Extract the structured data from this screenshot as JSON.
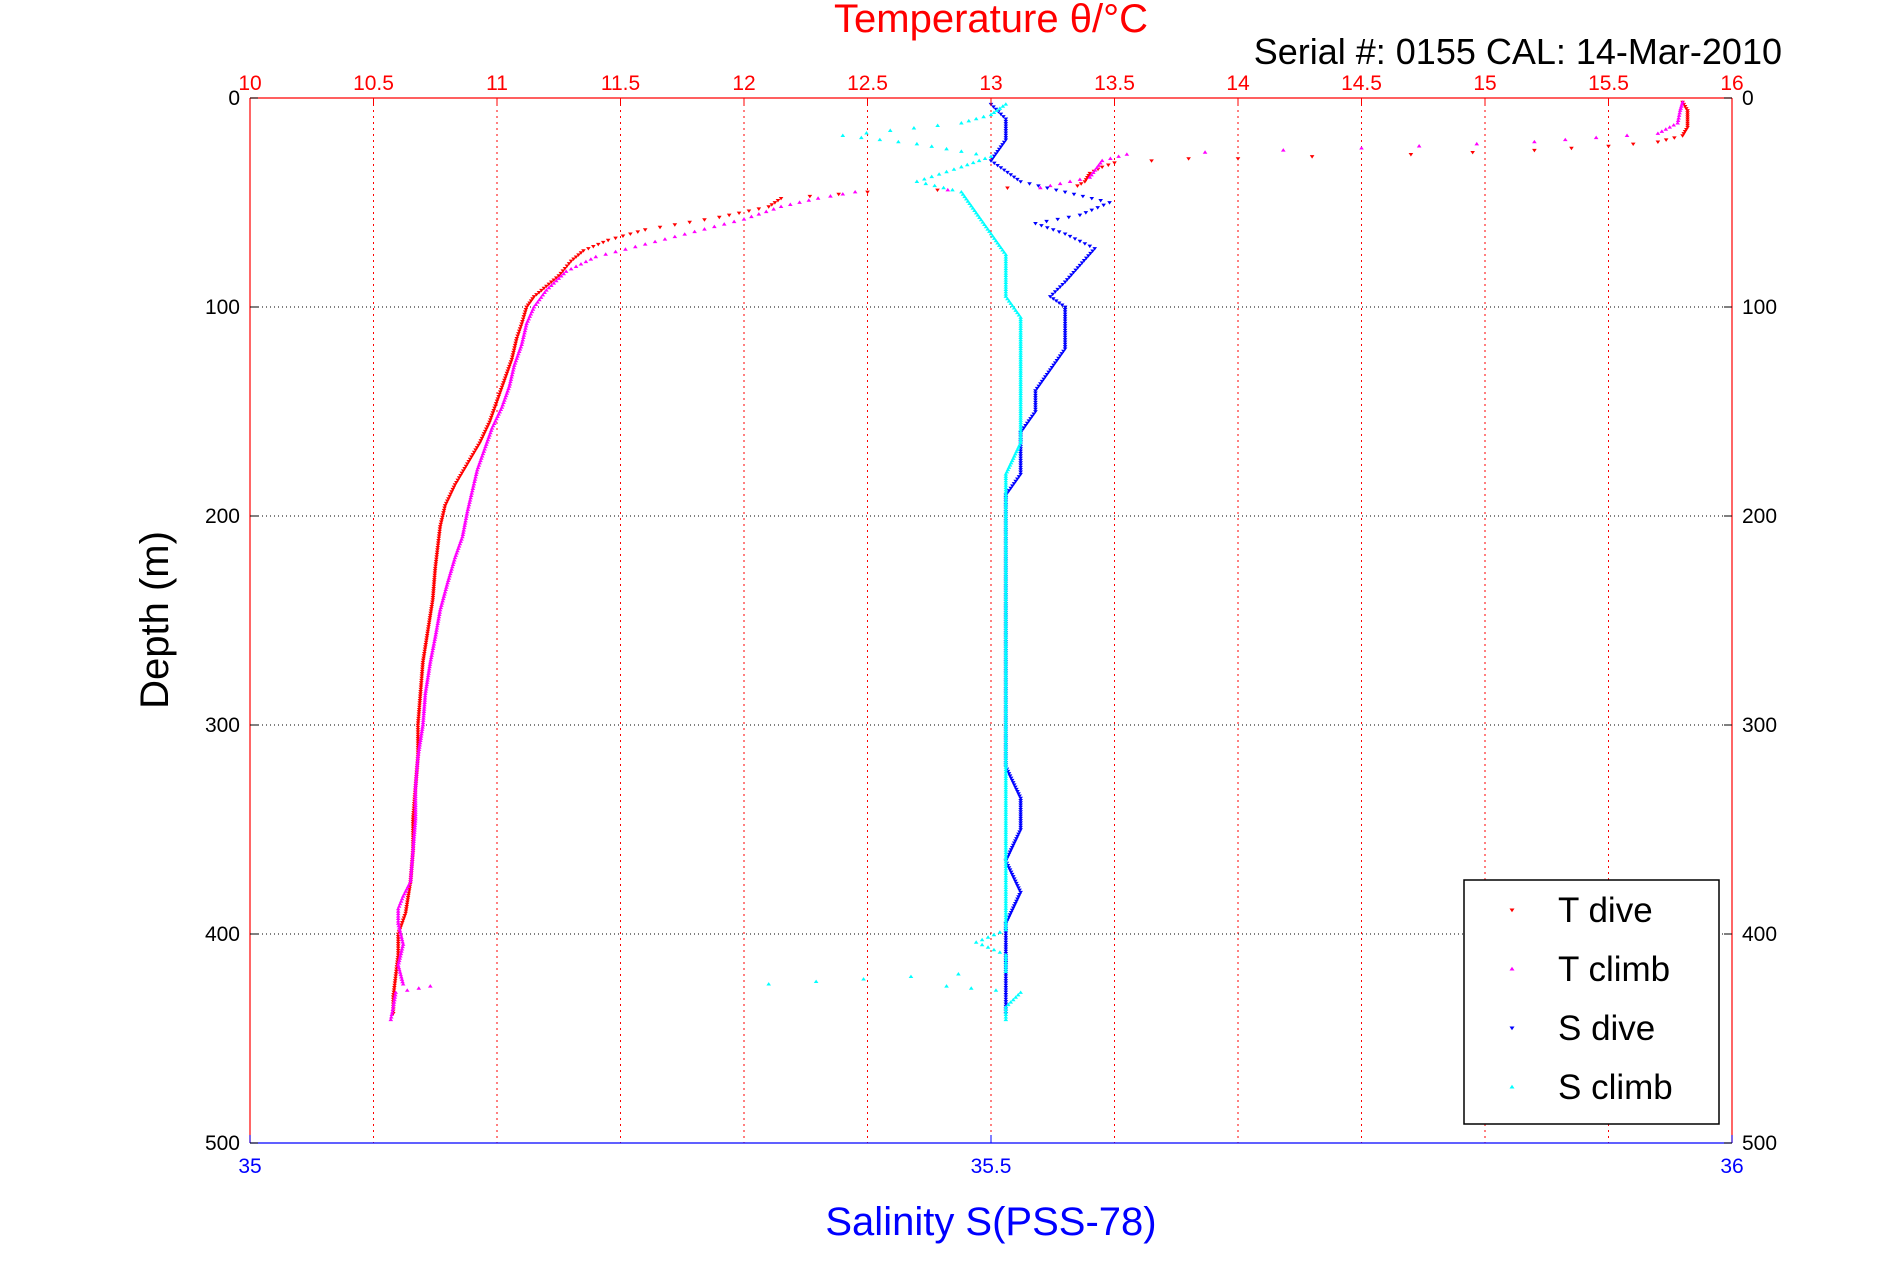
{
  "chart_data": {
    "type": "scatter",
    "title": "Temperature θ/°C",
    "subtitle": "Serial #: 0155  CAL: 14-Mar-2010",
    "ylabel": "Depth (m)",
    "xlabel_bottom": "Salinity S(PSS-78)",
    "top_axis": {
      "label": "Temperature θ/°C",
      "range": [
        10,
        16
      ],
      "ticks": [
        "10",
        "10.5",
        "11",
        "11.5",
        "12",
        "12.5",
        "13",
        "13.5",
        "14",
        "14.5",
        "15",
        "15.5",
        "16"
      ],
      "color": "#ff0000"
    },
    "bottom_axis": {
      "label": "Salinity S(PSS-78)",
      "range": [
        35,
        36
      ],
      "ticks": [
        "35",
        "35.5",
        "36"
      ],
      "color": "#0000ff"
    },
    "y_axis": {
      "label": "Depth (m)",
      "range": [
        0,
        500
      ],
      "reversed": true,
      "ticks": [
        "0",
        "100",
        "200",
        "300",
        "400",
        "500"
      ]
    },
    "grid": true,
    "legend_position": "bottom-right",
    "series": [
      {
        "name": "T dive",
        "axis": "temperature",
        "color": "#ff0000",
        "marker": "triangle-down",
        "points": [
          [
            15.8,
            2
          ],
          [
            15.82,
            6
          ],
          [
            15.82,
            10
          ],
          [
            15.82,
            14
          ],
          [
            15.8,
            18
          ],
          [
            15.7,
            21
          ],
          [
            15.5,
            23
          ],
          [
            15.2,
            25
          ],
          [
            14.7,
            27
          ],
          [
            14.3,
            28
          ],
          [
            14.0,
            29
          ],
          [
            13.8,
            29
          ],
          [
            13.65,
            30
          ],
          [
            13.5,
            31
          ],
          [
            13.45,
            33
          ],
          [
            13.4,
            36
          ],
          [
            13.38,
            40
          ],
          [
            13.35,
            42
          ],
          [
            12.5,
            45
          ],
          [
            12.15,
            48
          ],
          [
            12.1,
            52
          ],
          [
            11.9,
            57
          ],
          [
            11.6,
            63
          ],
          [
            11.45,
            68
          ],
          [
            11.35,
            73
          ],
          [
            11.3,
            78
          ],
          [
            11.25,
            85
          ],
          [
            11.2,
            90
          ],
          [
            11.15,
            95
          ],
          [
            11.12,
            100
          ],
          [
            11.1,
            108
          ],
          [
            11.08,
            115
          ],
          [
            11.06,
            125
          ],
          [
            11.03,
            135
          ],
          [
            11.0,
            145
          ],
          [
            10.97,
            155
          ],
          [
            10.93,
            165
          ],
          [
            10.88,
            175
          ],
          [
            10.83,
            185
          ],
          [
            10.79,
            195
          ],
          [
            10.77,
            205
          ],
          [
            10.76,
            215
          ],
          [
            10.75,
            225
          ],
          [
            10.74,
            240
          ],
          [
            10.72,
            255
          ],
          [
            10.7,
            270
          ],
          [
            10.69,
            285
          ],
          [
            10.68,
            300
          ],
          [
            10.68,
            315
          ],
          [
            10.67,
            330
          ],
          [
            10.66,
            345
          ],
          [
            10.66,
            360
          ],
          [
            10.65,
            375
          ],
          [
            10.63,
            390
          ],
          [
            10.6,
            400
          ],
          [
            10.6,
            410
          ],
          [
            10.59,
            420
          ],
          [
            10.58,
            430
          ],
          [
            10.58,
            438
          ]
        ]
      },
      {
        "name": "T climb",
        "axis": "temperature",
        "color": "#ff00ff",
        "marker": "triangle-up",
        "points": [
          [
            10.57,
            441
          ],
          [
            10.58,
            435
          ],
          [
            10.59,
            428
          ],
          [
            10.73,
            425
          ],
          [
            10.62,
            424
          ],
          [
            10.6,
            415
          ],
          [
            10.62,
            405
          ],
          [
            10.6,
            395
          ],
          [
            10.6,
            388
          ],
          [
            10.62,
            382
          ],
          [
            10.65,
            375
          ],
          [
            10.66,
            360
          ],
          [
            10.67,
            345
          ],
          [
            10.67,
            330
          ],
          [
            10.68,
            315
          ],
          [
            10.7,
            300
          ],
          [
            10.71,
            285
          ],
          [
            10.73,
            270
          ],
          [
            10.75,
            258
          ],
          [
            10.77,
            245
          ],
          [
            10.8,
            232
          ],
          [
            10.83,
            220
          ],
          [
            10.86,
            210
          ],
          [
            10.88,
            198
          ],
          [
            10.9,
            188
          ],
          [
            10.92,
            178
          ],
          [
            10.95,
            168
          ],
          [
            10.98,
            158
          ],
          [
            11.02,
            148
          ],
          [
            11.05,
            138
          ],
          [
            11.07,
            128
          ],
          [
            11.1,
            118
          ],
          [
            11.12,
            108
          ],
          [
            11.15,
            100
          ],
          [
            11.2,
            92
          ],
          [
            11.28,
            83
          ],
          [
            11.4,
            76
          ],
          [
            11.6,
            70
          ],
          [
            11.8,
            64
          ],
          [
            12.0,
            58
          ],
          [
            12.15,
            52
          ],
          [
            12.3,
            48
          ],
          [
            12.45,
            45
          ],
          [
            13.2,
            43
          ],
          [
            13.4,
            38
          ],
          [
            13.45,
            30
          ],
          [
            13.55,
            27
          ],
          [
            14.5,
            24
          ],
          [
            15.2,
            21
          ],
          [
            15.7,
            17
          ],
          [
            15.78,
            12
          ],
          [
            15.79,
            6
          ],
          [
            15.8,
            2
          ]
        ]
      },
      {
        "name": "S dive",
        "axis": "salinity",
        "color": "#0000ff",
        "marker": "triangle-down",
        "points": [
          [
            35.5,
            3
          ],
          [
            35.51,
            10
          ],
          [
            35.51,
            20
          ],
          [
            35.5,
            30
          ],
          [
            35.52,
            40
          ],
          [
            35.55,
            45
          ],
          [
            35.58,
            50
          ],
          [
            35.56,
            56
          ],
          [
            35.53,
            60
          ],
          [
            35.55,
            65
          ],
          [
            35.57,
            72
          ],
          [
            35.56,
            80
          ],
          [
            35.55,
            88
          ],
          [
            35.54,
            95
          ],
          [
            35.55,
            100
          ],
          [
            35.55,
            110
          ],
          [
            35.55,
            120
          ],
          [
            35.54,
            130
          ],
          [
            35.53,
            140
          ],
          [
            35.53,
            150
          ],
          [
            35.52,
            160
          ],
          [
            35.52,
            170
          ],
          [
            35.52,
            180
          ],
          [
            35.51,
            190
          ],
          [
            35.51,
            200
          ],
          [
            35.51,
            215
          ],
          [
            35.51,
            230
          ],
          [
            35.51,
            245
          ],
          [
            35.51,
            260
          ],
          [
            35.51,
            275
          ],
          [
            35.51,
            290
          ],
          [
            35.51,
            305
          ],
          [
            35.51,
            320
          ],
          [
            35.52,
            335
          ],
          [
            35.52,
            350
          ],
          [
            35.51,
            365
          ],
          [
            35.52,
            380
          ],
          [
            35.51,
            395
          ],
          [
            35.51,
            405
          ],
          [
            35.51,
            420
          ],
          [
            35.51,
            430
          ],
          [
            35.51,
            438
          ]
        ]
      },
      {
        "name": "S climb",
        "axis": "salinity",
        "color": "#00ffff",
        "marker": "triangle-up",
        "points": [
          [
            35.51,
            441
          ],
          [
            35.51,
            435
          ],
          [
            35.52,
            428
          ],
          [
            35.47,
            425
          ],
          [
            35.35,
            424
          ],
          [
            35.51,
            418
          ],
          [
            35.51,
            410
          ],
          [
            35.49,
            404
          ],
          [
            35.51,
            398
          ],
          [
            35.51,
            390
          ],
          [
            35.51,
            380
          ],
          [
            35.51,
            370
          ],
          [
            35.51,
            360
          ],
          [
            35.51,
            345
          ],
          [
            35.51,
            330
          ],
          [
            35.51,
            315
          ],
          [
            35.51,
            300
          ],
          [
            35.51,
            285
          ],
          [
            35.51,
            270
          ],
          [
            35.51,
            255
          ],
          [
            35.51,
            240
          ],
          [
            35.51,
            225
          ],
          [
            35.51,
            210
          ],
          [
            35.51,
            195
          ],
          [
            35.51,
            180
          ],
          [
            35.52,
            165
          ],
          [
            35.52,
            150
          ],
          [
            35.52,
            135
          ],
          [
            35.52,
            120
          ],
          [
            35.52,
            105
          ],
          [
            35.51,
            95
          ],
          [
            35.51,
            85
          ],
          [
            35.51,
            75
          ],
          [
            35.5,
            65
          ],
          [
            35.49,
            55
          ],
          [
            35.48,
            45
          ],
          [
            35.45,
            40
          ],
          [
            35.48,
            33
          ],
          [
            35.5,
            28
          ],
          [
            35.45,
            22
          ],
          [
            35.4,
            18
          ],
          [
            35.48,
            12
          ],
          [
            35.5,
            8
          ],
          [
            35.51,
            3
          ]
        ]
      }
    ],
    "legend": [
      "T dive",
      "T climb",
      "S dive",
      "S climb"
    ]
  }
}
